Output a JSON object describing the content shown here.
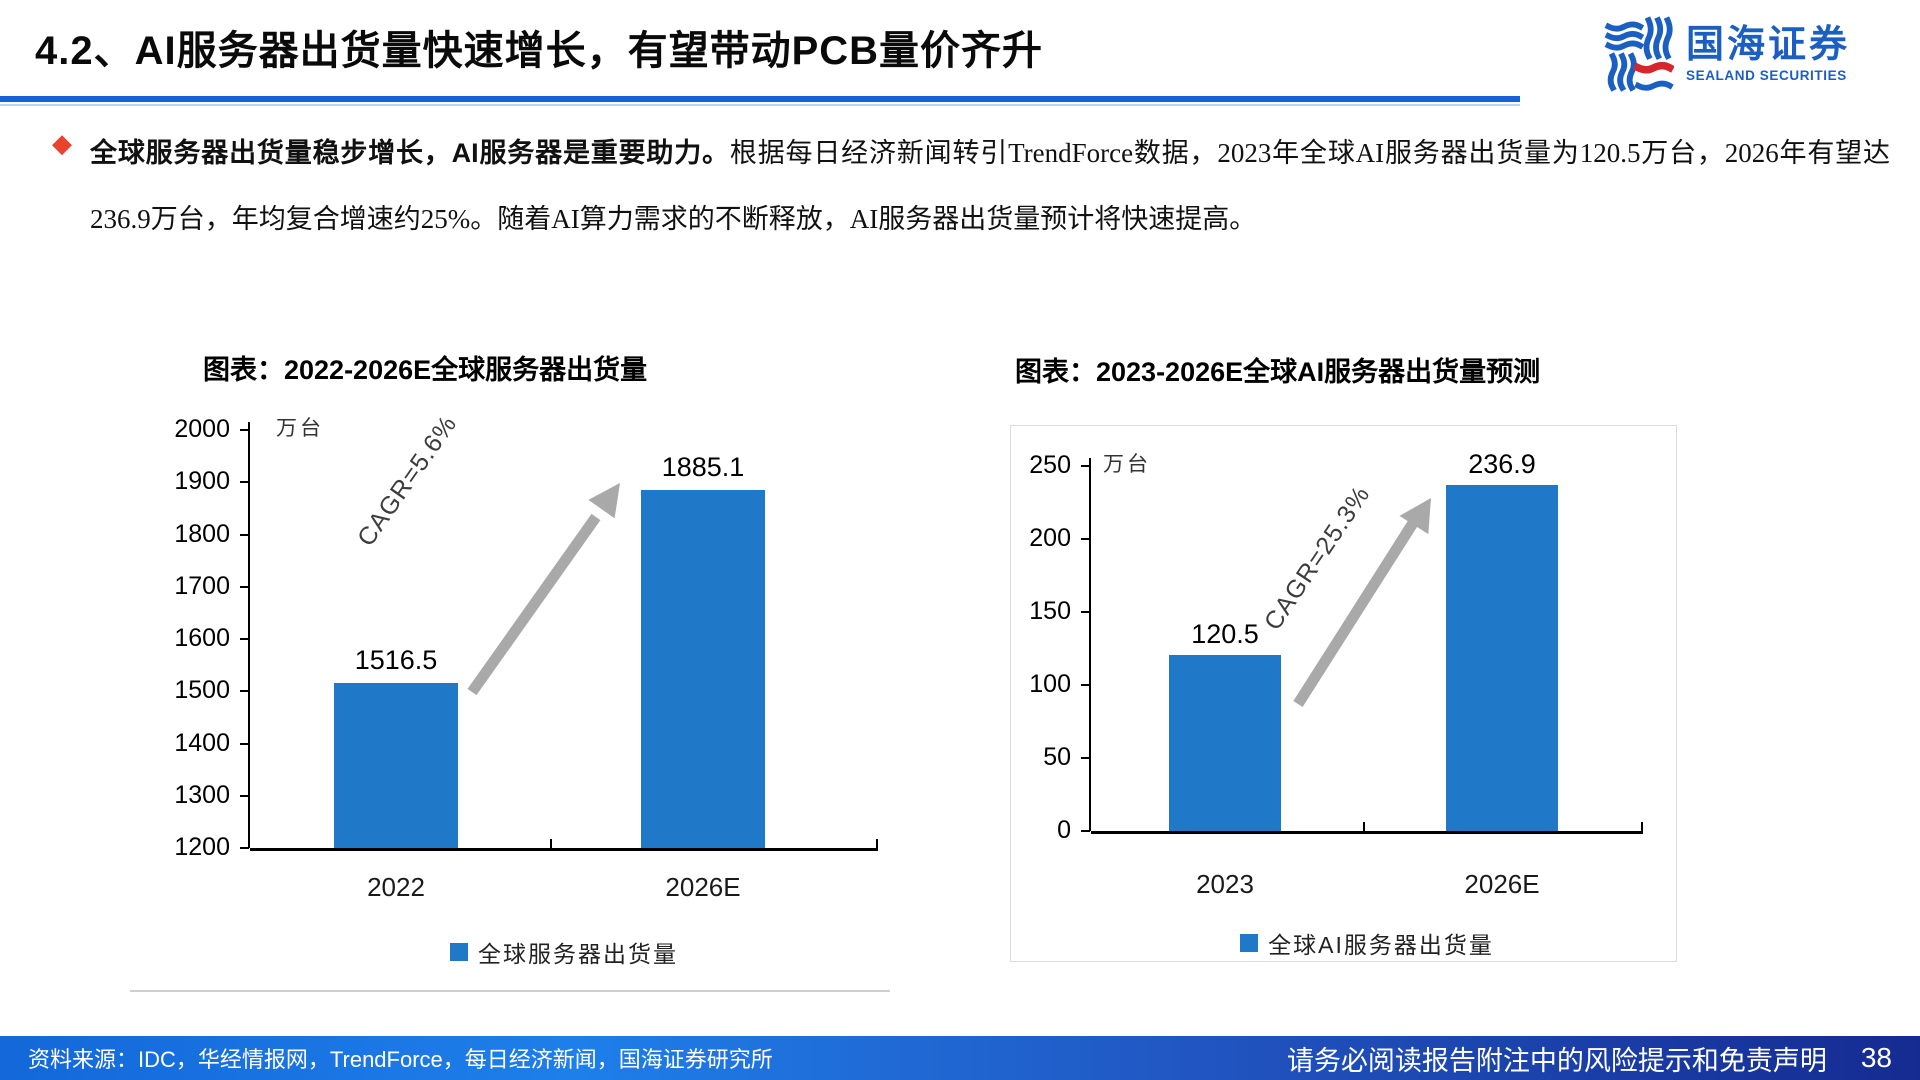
{
  "header": {
    "title": "4.2、AI服务器出货量快速增长，有望带动PCB量价齐升",
    "logo_cn": "国海证券",
    "logo_en": "SEALAND SECURITIES"
  },
  "summary": {
    "lead_bold": "全球服务器出货量稳步增长，AI服务器是重要助力。",
    "body_text": "根据每日经济新闻转引TrendForce数据，2023年全球AI服务器出货量为120.5万台，2026年有望达236.9万台，年均复合增速约25%。随着AI算力需求的不断释放，AI服务器出货量预计将快速提高。"
  },
  "chart_data": [
    {
      "type": "bar",
      "title": "图表：2022-2026E全球服务器出货量",
      "unit": "万台",
      "categories": [
        "2022",
        "2026E"
      ],
      "values": [
        1516.5,
        1885.1
      ],
      "value_labels": [
        "1516.5",
        "1885.1"
      ],
      "series": [
        {
          "name": "全球服务器出货量",
          "values": [
            1516.5,
            1885.1
          ]
        }
      ],
      "annotation": "CAGR=5.6%",
      "legend_label": "全球服务器出货量",
      "legend_position": "bottom",
      "ylim": [
        1200,
        2000
      ],
      "ytick_step": 100,
      "yticks": [
        2000,
        1900,
        1800,
        1700,
        1600,
        1500,
        1400,
        1300,
        1200
      ],
      "grid": false,
      "bar_color": "#1F78C8"
    },
    {
      "type": "bar",
      "title": "图表：2023-2026E全球AI服务器出货量预测",
      "unit": "万台",
      "categories": [
        "2023",
        "2026E"
      ],
      "values": [
        120.5,
        236.9
      ],
      "value_labels": [
        "120.5",
        "236.9"
      ],
      "series": [
        {
          "name": "全球AI服务器出货量",
          "values": [
            120.5,
            236.9
          ]
        }
      ],
      "annotation": "CAGR=25.3%",
      "legend_label": "全球AI服务器出货量",
      "legend_position": "bottom",
      "ylim": [
        0,
        250
      ],
      "ytick_step": 50,
      "yticks": [
        250,
        200,
        150,
        100,
        50,
        0
      ],
      "grid": false,
      "bar_color": "#1F78C8"
    }
  ],
  "footer": {
    "source": "资料来源：IDC，华经情报网，TrendForce，每日经济新闻，国海证券研究所",
    "disclaimer": "请务必阅读报告附注中的风险提示和免责声明",
    "page_number": "38"
  },
  "colors": {
    "accent_blue": "#1463DB",
    "bar_blue": "#1F78C8",
    "logo_blue": "#1C5FC2",
    "logo_red": "#D6252B",
    "bullet_red": "#E8432C",
    "arrow_gray": "#A9A9A9",
    "footer_gradient_start": "#1468D9",
    "footer_gradient_end": "#152B91"
  }
}
